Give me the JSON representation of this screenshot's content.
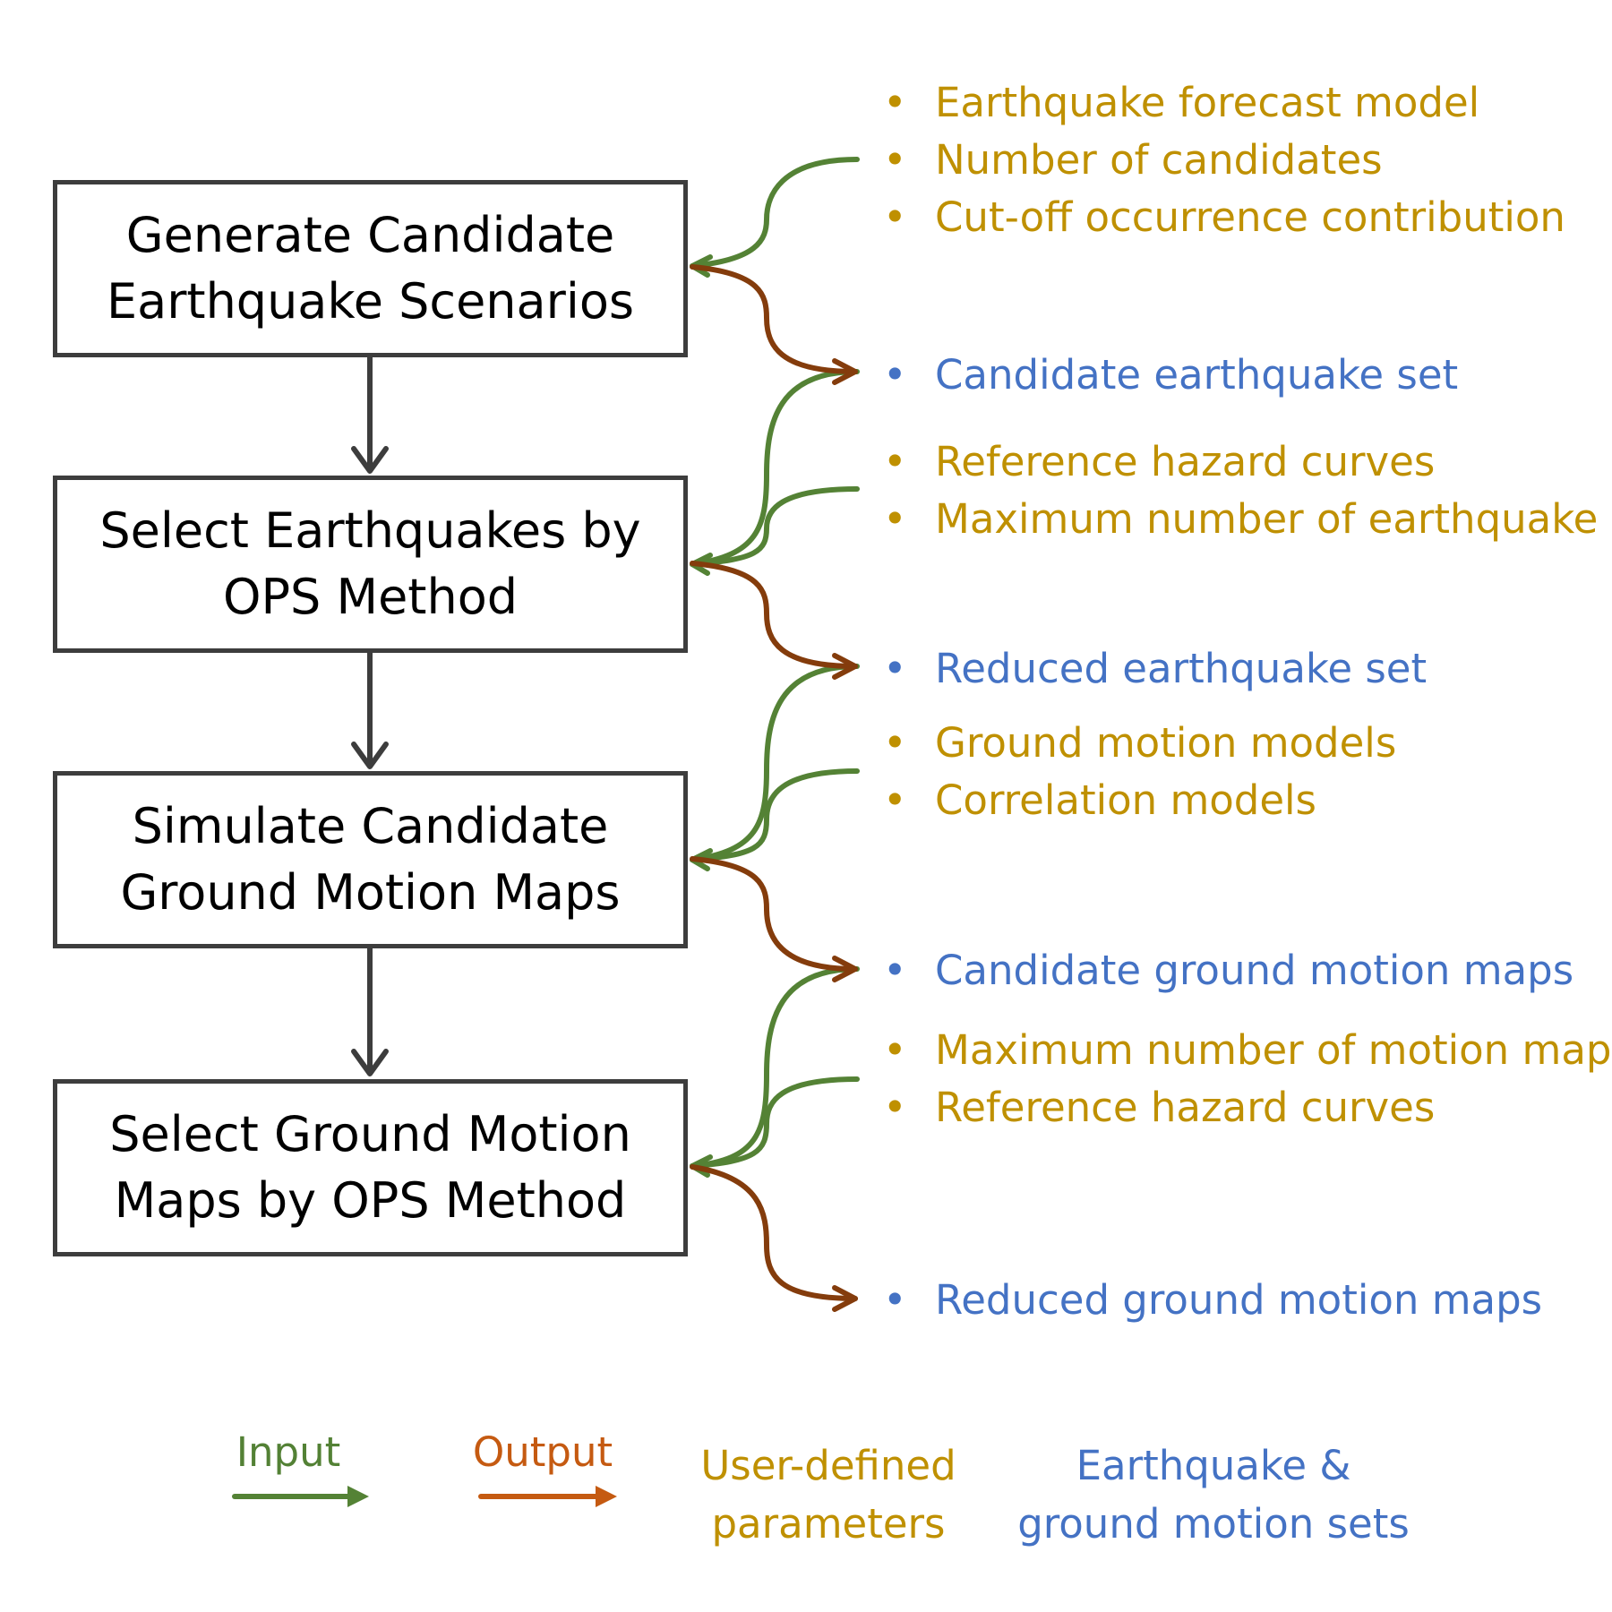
{
  "colors": {
    "box_border": "#3d3d3d",
    "flow_arrow": "#3d3d3d",
    "input_arrow": "#548235",
    "output_arrow": "#843c0c",
    "user_defined_text": "#bf9000",
    "set_text": "#4472c4",
    "legend_input": "#538135",
    "legend_output": "#c55a11"
  },
  "bullet": "•",
  "steps": [
    {
      "line1": "Generate Candidate",
      "line2": "Earthquake Scenarios"
    },
    {
      "line1": "Select Earthquakes by",
      "line2": "OPS Method"
    },
    {
      "line1": "Simulate Candidate",
      "line2": "Ground Motion Maps"
    },
    {
      "line1": "Select Ground Motion",
      "line2": "Maps by OPS Method"
    }
  ],
  "items": [
    "Earthquake forecast model",
    "Number of candidates",
    "Cut-off occurrence contribution",
    "Candidate earthquake set",
    "Reference hazard curves",
    "Maximum number of earthquake",
    "Reduced earthquake set",
    "Ground motion models",
    "Correlation models",
    "Candidate ground motion maps",
    "Maximum number of motion maps",
    "Reference hazard curves",
    "Reduced ground motion maps"
  ],
  "legend": {
    "input": "Input",
    "output": "Output",
    "user_defined_line1": "User-defined",
    "user_defined_line2": "parameters",
    "sets_line1": "Earthquake &",
    "sets_line2": "ground motion sets"
  }
}
